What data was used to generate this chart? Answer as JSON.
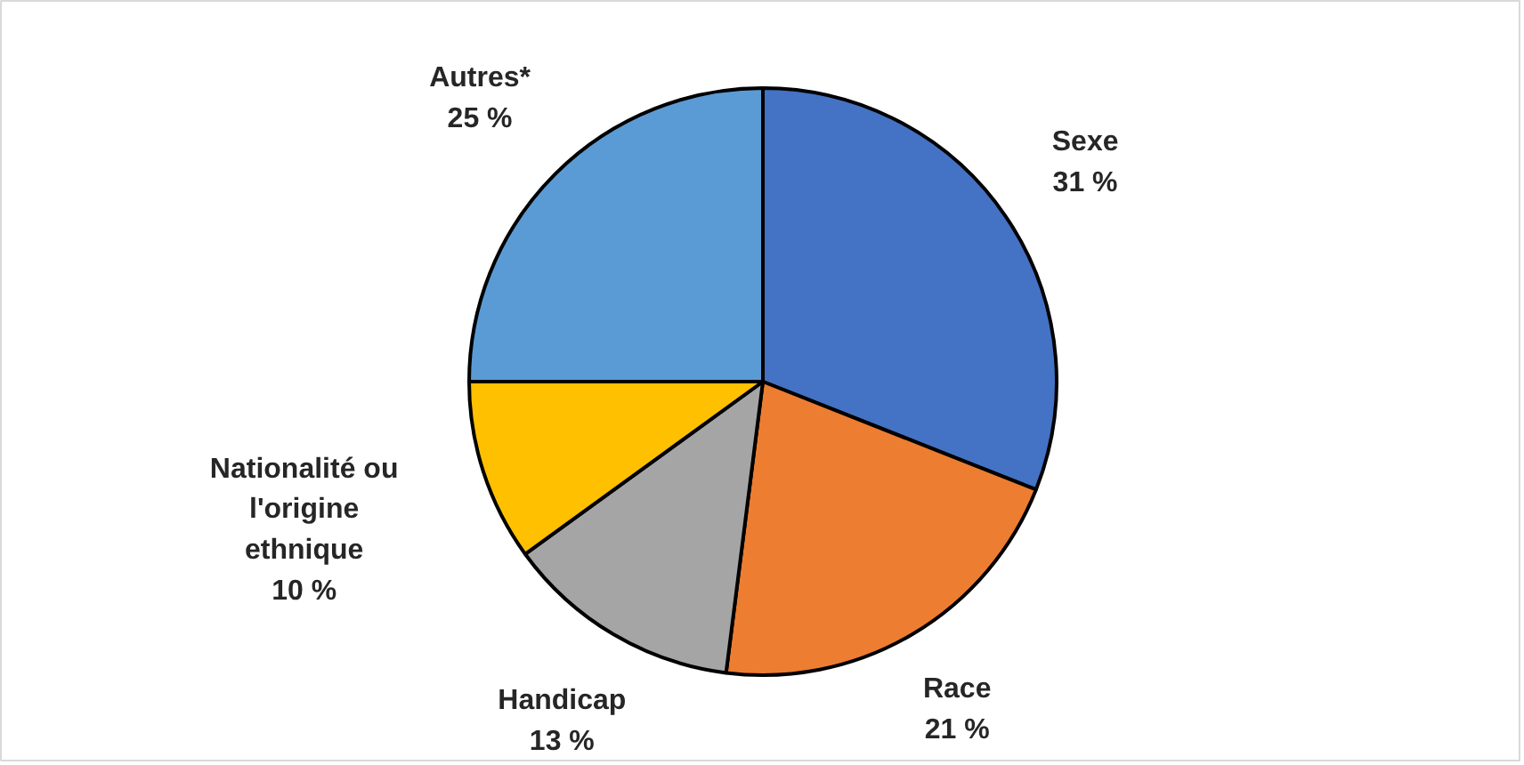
{
  "chart_data": {
    "type": "pie",
    "categories": [
      "Sexe",
      "Race",
      "Handicap",
      "Nationalité ou l'origine ethnique",
      "Autres*"
    ],
    "values": [
      31,
      21,
      13,
      10,
      25
    ],
    "colors": [
      "#4472c4",
      "#ed7d31",
      "#a5a5a5",
      "#ffc000",
      "#5b9bd5"
    ],
    "value_labels": [
      "31 %",
      "21 %",
      "13 %",
      "10 %",
      "25 %"
    ]
  }
}
